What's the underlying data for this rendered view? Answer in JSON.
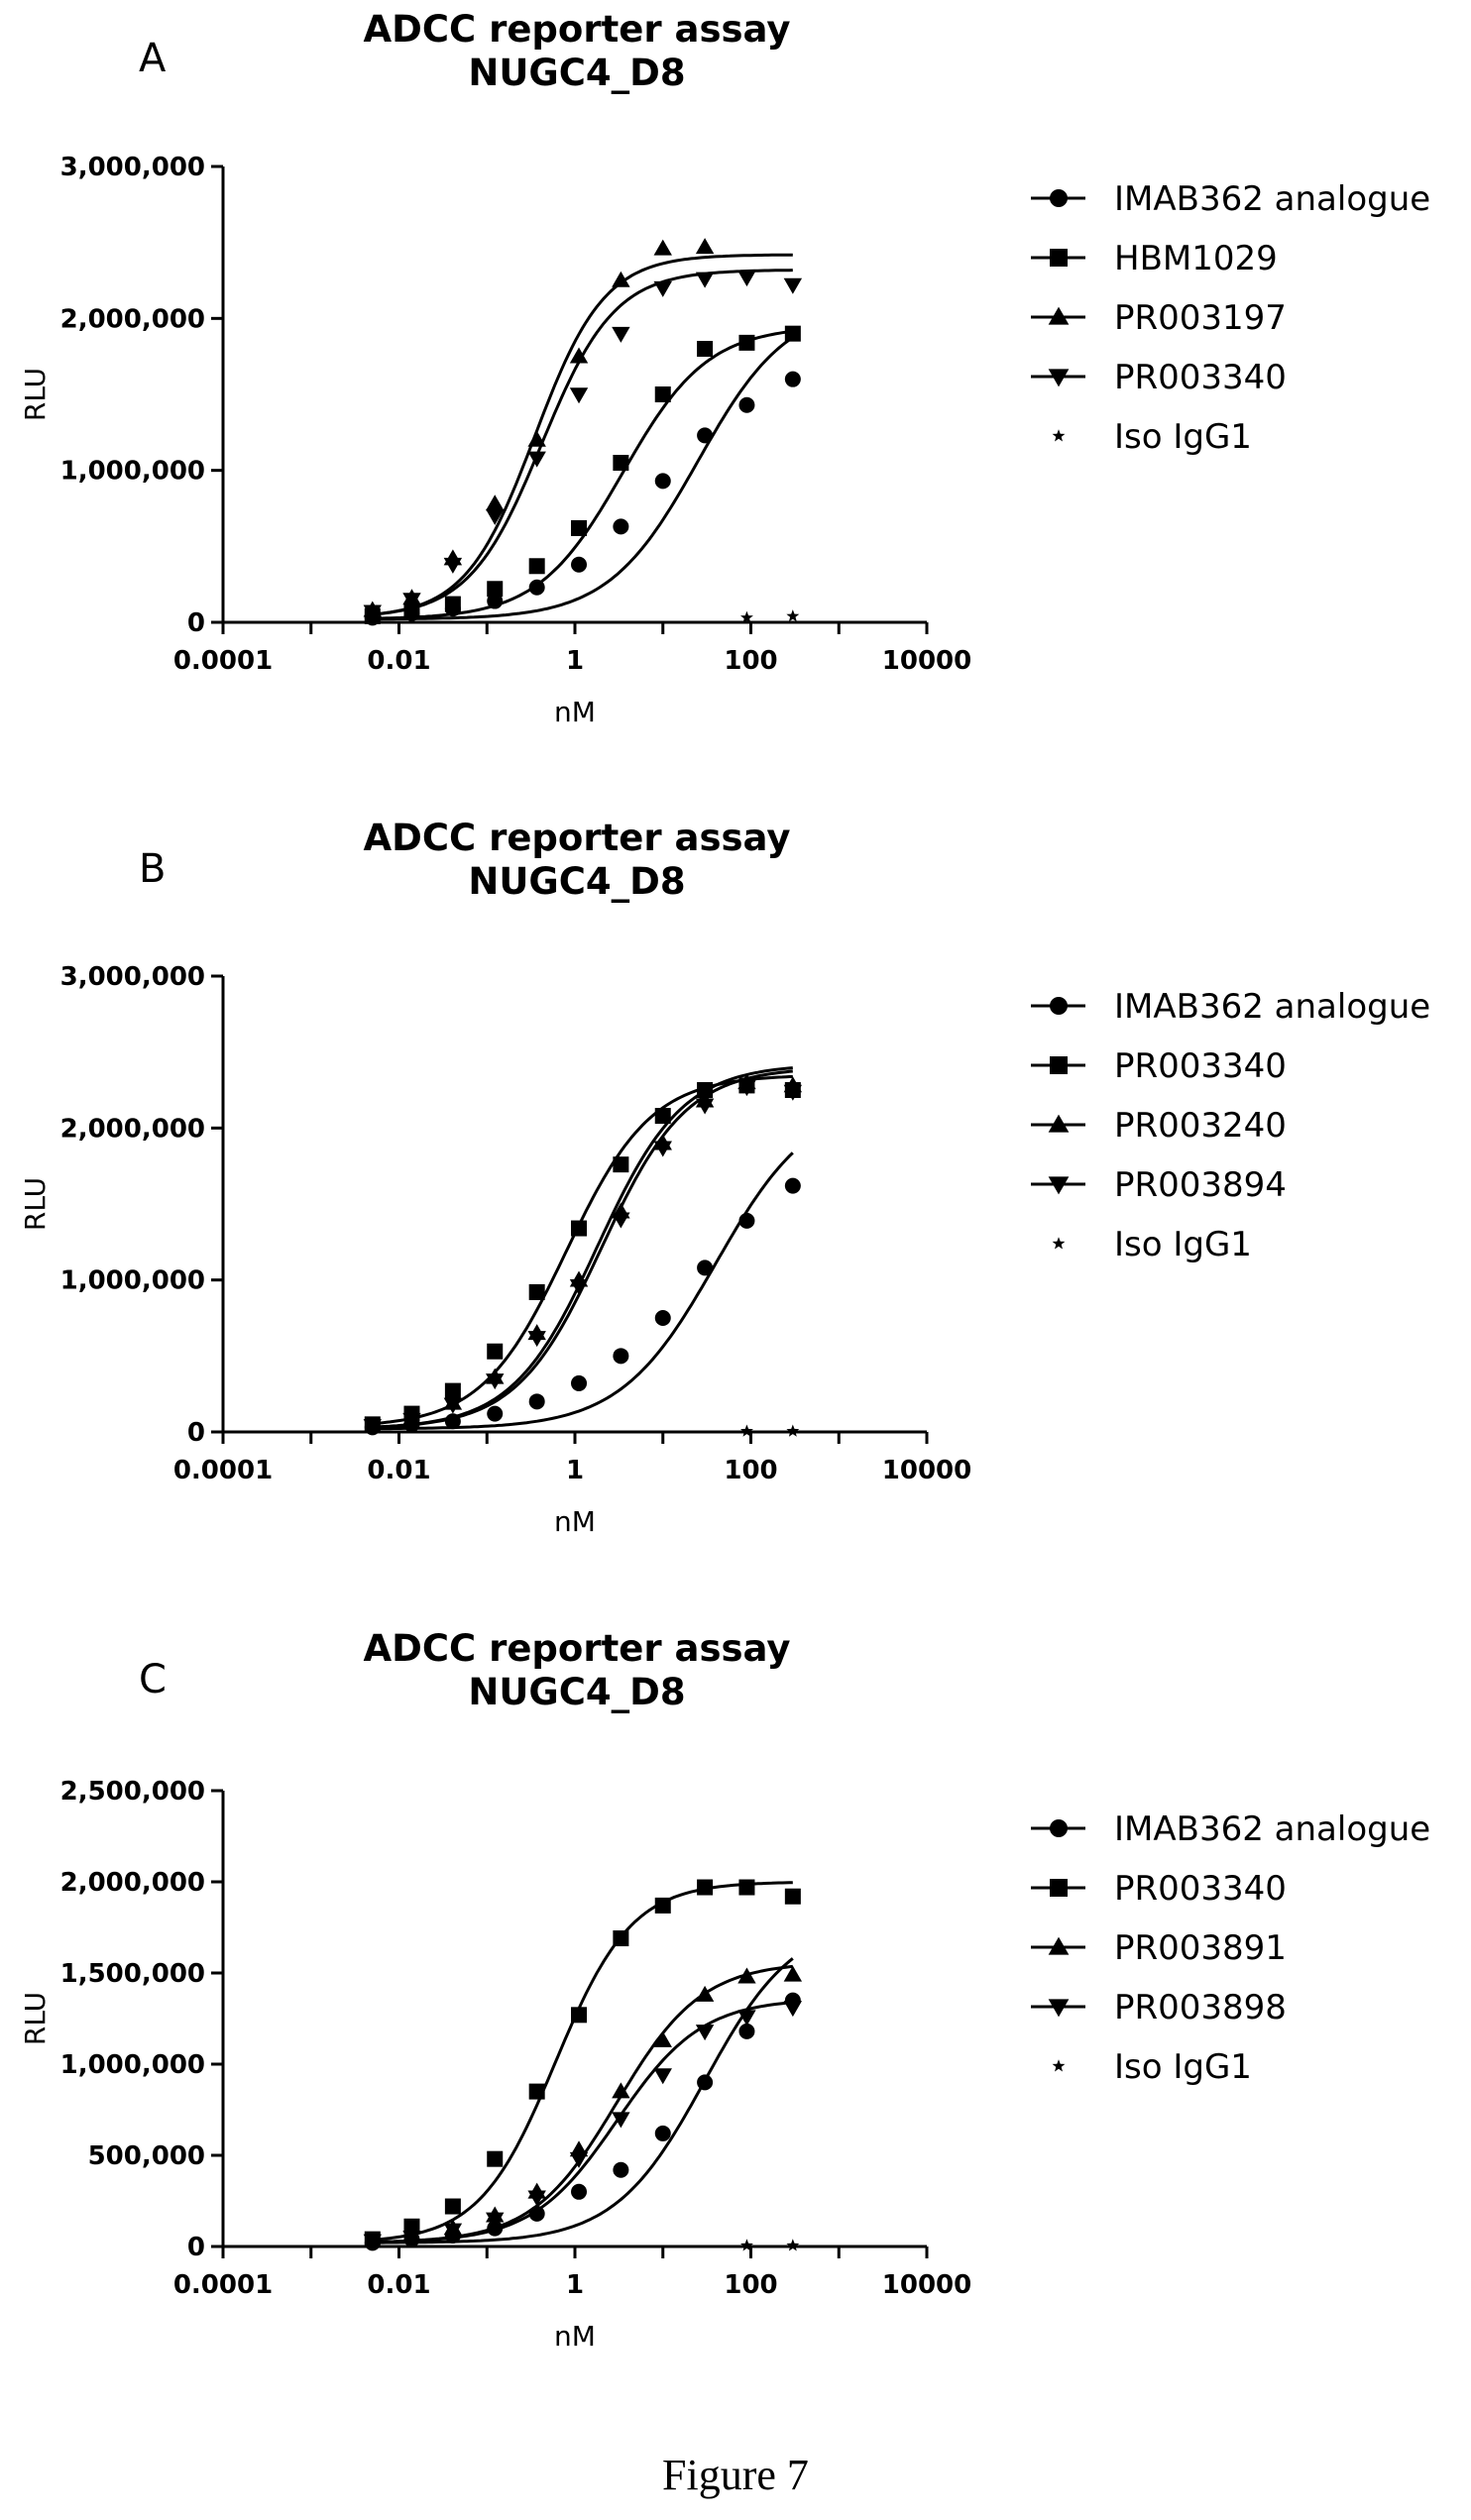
{
  "chart_data": [
    {
      "type": "scatter",
      "panel_label": "A",
      "title": "ADCC reporter assay",
      "subtitle": "NUGC4_D8",
      "xlabel": "nM",
      "ylabel": "RLU",
      "x_scale": "log",
      "xlim": [
        0.0001,
        10000
      ],
      "x_ticks": [
        "0.0001",
        "0.01",
        "1",
        "100",
        "10000"
      ],
      "ylim": [
        0,
        3000000
      ],
      "y_ticks": [
        "0",
        "1,000,000",
        "2,000,000",
        "3,000,000"
      ],
      "legend_position": "right",
      "series": [
        {
          "name": "IMAB362 analogue",
          "marker": "circle",
          "x": [
            0.005,
            0.014,
            0.041,
            0.123,
            0.37,
            1.11,
            3.33,
            10,
            30,
            90,
            300
          ],
          "y": [
            30000,
            60000,
            90000,
            140000,
            230000,
            380000,
            630000,
            930000,
            1230000,
            1430000,
            1600000
          ],
          "fit": {
            "bottom": 20000,
            "top": 2100000,
            "ec50": 25,
            "hill": 0.85
          }
        },
        {
          "name": "HBM1029",
          "marker": "square",
          "x": [
            0.005,
            0.014,
            0.041,
            0.123,
            0.37,
            1.11,
            3.33,
            10,
            30,
            90,
            300
          ],
          "y": [
            40000,
            80000,
            120000,
            220000,
            370000,
            620000,
            1050000,
            1500000,
            1800000,
            1840000,
            1900000
          ],
          "fit": {
            "bottom": 20000,
            "top": 1950000,
            "ec50": 3.5,
            "hill": 0.9
          }
        },
        {
          "name": "PR003197",
          "marker": "triangle-up",
          "x": [
            0.005,
            0.014,
            0.041,
            0.123,
            0.37,
            1.11,
            3.33,
            10,
            30
          ],
          "y": [
            80000,
            160000,
            420000,
            780000,
            1200000,
            1750000,
            2250000,
            2460000,
            2470000
          ],
          "fit": {
            "bottom": 30000,
            "top": 2420000,
            "ec50": 0.35,
            "hill": 1.1
          }
        },
        {
          "name": "PR003340",
          "marker": "triangle-down",
          "x": [
            0.005,
            0.014,
            0.041,
            0.123,
            0.37,
            1.11,
            3.33,
            10,
            30,
            90,
            300
          ],
          "y": [
            70000,
            150000,
            380000,
            700000,
            1080000,
            1500000,
            1900000,
            2200000,
            2260000,
            2270000,
            2220000
          ],
          "fit": {
            "bottom": 30000,
            "top": 2320000,
            "ec50": 0.42,
            "hill": 1.05
          }
        },
        {
          "name": "Iso IgG1",
          "marker": "star",
          "x": [
            90,
            300
          ],
          "y": [
            30000,
            40000
          ]
        }
      ]
    },
    {
      "type": "scatter",
      "panel_label": "B",
      "title": "ADCC reporter assay",
      "subtitle": "NUGC4_D8",
      "xlabel": "nM",
      "ylabel": "RLU",
      "x_scale": "log",
      "xlim": [
        0.0001,
        10000
      ],
      "x_ticks": [
        "0.0001",
        "0.01",
        "1",
        "100",
        "10000"
      ],
      "ylim": [
        0,
        3000000
      ],
      "y_ticks": [
        "0",
        "1,000,000",
        "2,000,000",
        "3,000,000"
      ],
      "legend_position": "right",
      "series": [
        {
          "name": "IMAB362 analogue",
          "marker": "circle",
          "x": [
            0.005,
            0.014,
            0.041,
            0.123,
            0.37,
            1.11,
            3.33,
            10,
            30,
            90,
            300
          ],
          "y": [
            30000,
            50000,
            70000,
            120000,
            200000,
            320000,
            500000,
            750000,
            1080000,
            1390000,
            1620000
          ],
          "fit": {
            "bottom": 20000,
            "top": 2200000,
            "ec50": 40,
            "hill": 0.8
          }
        },
        {
          "name": "PR003340",
          "marker": "square",
          "x": [
            0.005,
            0.014,
            0.041,
            0.123,
            0.37,
            1.11,
            3.33,
            10,
            30,
            90,
            300
          ],
          "y": [
            50000,
            120000,
            270000,
            530000,
            920000,
            1340000,
            1760000,
            2080000,
            2250000,
            2280000,
            2250000
          ],
          "fit": {
            "bottom": 30000,
            "top": 2350000,
            "ec50": 0.8,
            "hill": 0.9
          }
        },
        {
          "name": "PR003240",
          "marker": "triangle-up",
          "x": [
            0.005,
            0.014,
            0.041,
            0.123,
            0.37,
            1.11,
            3.33,
            10,
            30,
            90,
            300
          ],
          "y": [
            40000,
            90000,
            190000,
            360000,
            650000,
            1000000,
            1450000,
            1900000,
            2180000,
            2300000,
            2280000
          ],
          "fit": {
            "bottom": 20000,
            "top": 2420000,
            "ec50": 1.8,
            "hill": 0.9
          }
        },
        {
          "name": "PR003894",
          "marker": "triangle-down",
          "x": [
            0.005,
            0.014,
            0.041,
            0.123,
            0.37,
            1.11,
            3.33,
            10,
            30,
            90,
            300
          ],
          "y": [
            40000,
            80000,
            180000,
            340000,
            620000,
            960000,
            1400000,
            1870000,
            2150000,
            2270000,
            2240000
          ],
          "fit": {
            "bottom": 20000,
            "top": 2400000,
            "ec50": 2.0,
            "hill": 0.9
          }
        },
        {
          "name": "Iso IgG1",
          "marker": "star",
          "x": [
            90,
            300
          ],
          "y": [
            5000,
            5000
          ]
        }
      ]
    },
    {
      "type": "scatter",
      "panel_label": "C",
      "title": "ADCC reporter assay",
      "subtitle": "NUGC4_D8",
      "xlabel": "nM",
      "ylabel": "RLU",
      "x_scale": "log",
      "xlim": [
        0.0001,
        10000
      ],
      "x_ticks": [
        "0.0001",
        "0.01",
        "1",
        "100",
        "10000"
      ],
      "ylim": [
        0,
        2500000
      ],
      "y_ticks": [
        "0",
        "500,000",
        "1,000,000",
        "1,500,000",
        "2,000,000",
        "2,500,000"
      ],
      "legend_position": "right",
      "series": [
        {
          "name": "IMAB362 analogue",
          "marker": "circle",
          "x": [
            0.005,
            0.014,
            0.041,
            0.123,
            0.37,
            1.11,
            3.33,
            10,
            30,
            90,
            300
          ],
          "y": [
            20000,
            40000,
            60000,
            100000,
            180000,
            300000,
            420000,
            620000,
            900000,
            1180000,
            1350000
          ],
          "fit": {
            "bottom": 20000,
            "top": 1800000,
            "ec50": 30,
            "hill": 0.85
          }
        },
        {
          "name": "PR003340",
          "marker": "square",
          "x": [
            0.005,
            0.014,
            0.041,
            0.123,
            0.37,
            1.11,
            3.33,
            10,
            30,
            90,
            300
          ],
          "y": [
            40000,
            110000,
            220000,
            480000,
            850000,
            1270000,
            1690000,
            1870000,
            1970000,
            1970000,
            1920000
          ],
          "fit": {
            "bottom": 20000,
            "top": 2000000,
            "ec50": 0.6,
            "hill": 1.0
          }
        },
        {
          "name": "PR003891",
          "marker": "triangle-up",
          "x": [
            0.005,
            0.014,
            0.041,
            0.123,
            0.37,
            1.11,
            3.33,
            10,
            30,
            90,
            300
          ],
          "y": [
            30000,
            60000,
            100000,
            170000,
            300000,
            530000,
            850000,
            1130000,
            1380000,
            1480000,
            1490000
          ],
          "fit": {
            "bottom": 20000,
            "top": 1560000,
            "ec50": 3.0,
            "hill": 0.9
          }
        },
        {
          "name": "PR003898",
          "marker": "triangle-down",
          "x": [
            0.005,
            0.014,
            0.041,
            0.123,
            0.37,
            1.11,
            3.33,
            10,
            30,
            90,
            300
          ],
          "y": [
            30000,
            50000,
            90000,
            150000,
            270000,
            480000,
            700000,
            940000,
            1180000,
            1260000,
            1310000
          ],
          "fit": {
            "bottom": 20000,
            "top": 1360000,
            "ec50": 3.0,
            "hill": 0.9
          }
        },
        {
          "name": "Iso IgG1",
          "marker": "star",
          "x": [
            90,
            300
          ],
          "y": [
            5000,
            5000
          ]
        }
      ]
    }
  ],
  "caption": "Figure 7"
}
